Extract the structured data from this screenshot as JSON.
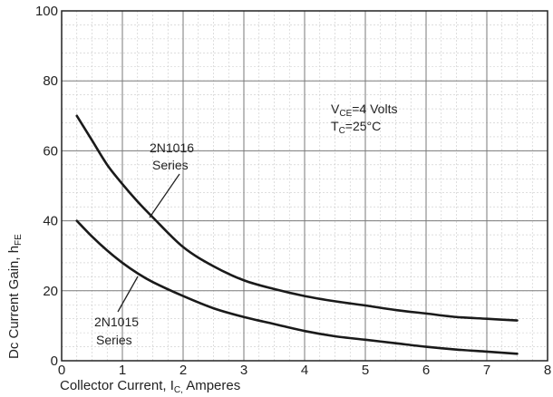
{
  "chart_data": {
    "type": "line",
    "title": "",
    "xlabel": "Collector Current, I",
    "xlabel_sub": "C,",
    "xlabel_unit": " Amperes",
    "ylabel": "Dc  Current Gain, h",
    "ylabel_sub": "FE",
    "xlim": [
      0,
      8
    ],
    "ylim": [
      0,
      100
    ],
    "x_ticks": [
      0,
      1,
      2,
      3,
      4,
      5,
      6,
      7,
      8
    ],
    "x_tick_labels": [
      "0",
      "1",
      "2",
      "3",
      "4",
      "5",
      "6",
      "7",
      "8"
    ],
    "y_ticks": [
      0,
      20,
      40,
      60,
      80,
      100
    ],
    "y_tick_labels": [
      "0",
      "20",
      "40",
      "60",
      "80",
      "100"
    ],
    "grid": true,
    "conditions": {
      "vce_main": "V",
      "vce_sub": "CE",
      "vce_value": "=4 Volts",
      "tc_main": "T",
      "tc_sub": "C",
      "tc_value": "=25°C"
    },
    "series": [
      {
        "name": "2N1016 Series",
        "label_line1": "2N1016",
        "label_line2": "Series",
        "x": [
          0.25,
          0.5,
          0.75,
          1.0,
          1.25,
          1.5,
          2.0,
          2.5,
          3.0,
          3.5,
          4.0,
          4.5,
          5.0,
          5.5,
          6.0,
          6.5,
          7.0,
          7.5
        ],
        "y": [
          70,
          63,
          56,
          50.5,
          45.5,
          41,
          32.5,
          27,
          23,
          20.5,
          18.5,
          17,
          15.8,
          14.5,
          13.5,
          12.5,
          12,
          11.5
        ]
      },
      {
        "name": "2N1015 Series",
        "label_line1": "2N1015",
        "label_line2": "Series",
        "x": [
          0.25,
          0.5,
          0.75,
          1.0,
          1.25,
          1.5,
          2.0,
          2.5,
          3.0,
          3.5,
          4.0,
          4.5,
          5.0,
          5.5,
          6.0,
          6.5,
          7.0,
          7.5
        ],
        "y": [
          40,
          35.5,
          31.5,
          28,
          25,
          22.5,
          18.5,
          15,
          12.5,
          10.5,
          8.5,
          7,
          6,
          5,
          4,
          3.2,
          2.6,
          2
        ]
      }
    ]
  }
}
